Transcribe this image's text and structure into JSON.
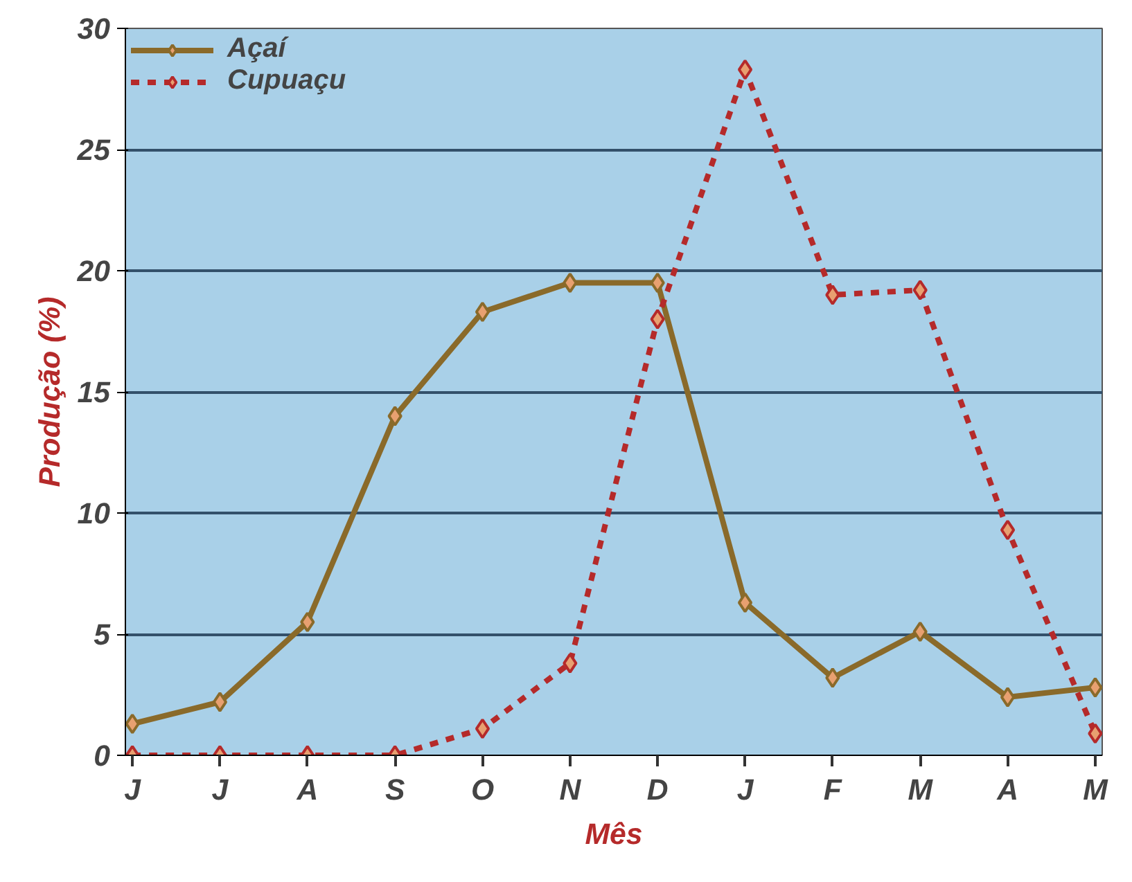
{
  "chart_data": {
    "type": "line",
    "xlabel": "Mês",
    "ylabel": "Produção (%)",
    "categories": [
      "J",
      "J",
      "A",
      "S",
      "O",
      "N",
      "D",
      "J",
      "F",
      "M",
      "A",
      "M"
    ],
    "series": [
      {
        "name": "Açaí",
        "color": "#8a6a2a",
        "line_style": "solid",
        "values": [
          1.3,
          2.2,
          5.5,
          14,
          18.3,
          19.5,
          19.5,
          6.3,
          3.2,
          5.1,
          2.4,
          2.8
        ]
      },
      {
        "name": "Cupuaçu",
        "color": "#b52a2a",
        "line_style": "dashed",
        "values": [
          0,
          0,
          0,
          0,
          1.1,
          3.8,
          18,
          28.3,
          19,
          19.2,
          9.3,
          0.9
        ]
      }
    ],
    "ylim": [
      0,
      30
    ],
    "yticks": [
      0,
      5,
      10,
      15,
      20,
      25,
      30
    ],
    "grid": "y",
    "legend": "top left",
    "marker": "diamond"
  }
}
